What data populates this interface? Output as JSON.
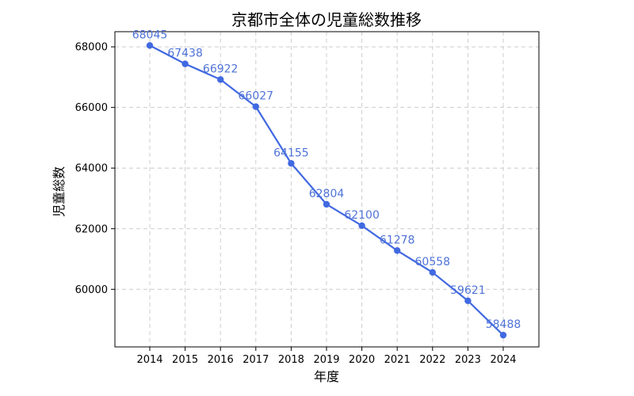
{
  "chart_data": {
    "type": "line",
    "title": "京都市全体の児童総数推移",
    "xlabel": "年度",
    "ylabel": "児童総数",
    "x": [
      "2014",
      "2015",
      "2016",
      "2017",
      "2018",
      "2019",
      "2020",
      "2021",
      "2022",
      "2023",
      "2024"
    ],
    "series": [
      {
        "values": [
          68045,
          67438,
          66922,
          66027,
          64155,
          62804,
          62100,
          61278,
          60558,
          59621,
          58488
        ]
      }
    ],
    "yticks": [
      60000,
      62000,
      64000,
      66000,
      68000
    ],
    "ylim": [
      58100,
      68500
    ],
    "grid": true,
    "line_color": "#4169e1",
    "data_label_color": "#4f73d8"
  }
}
